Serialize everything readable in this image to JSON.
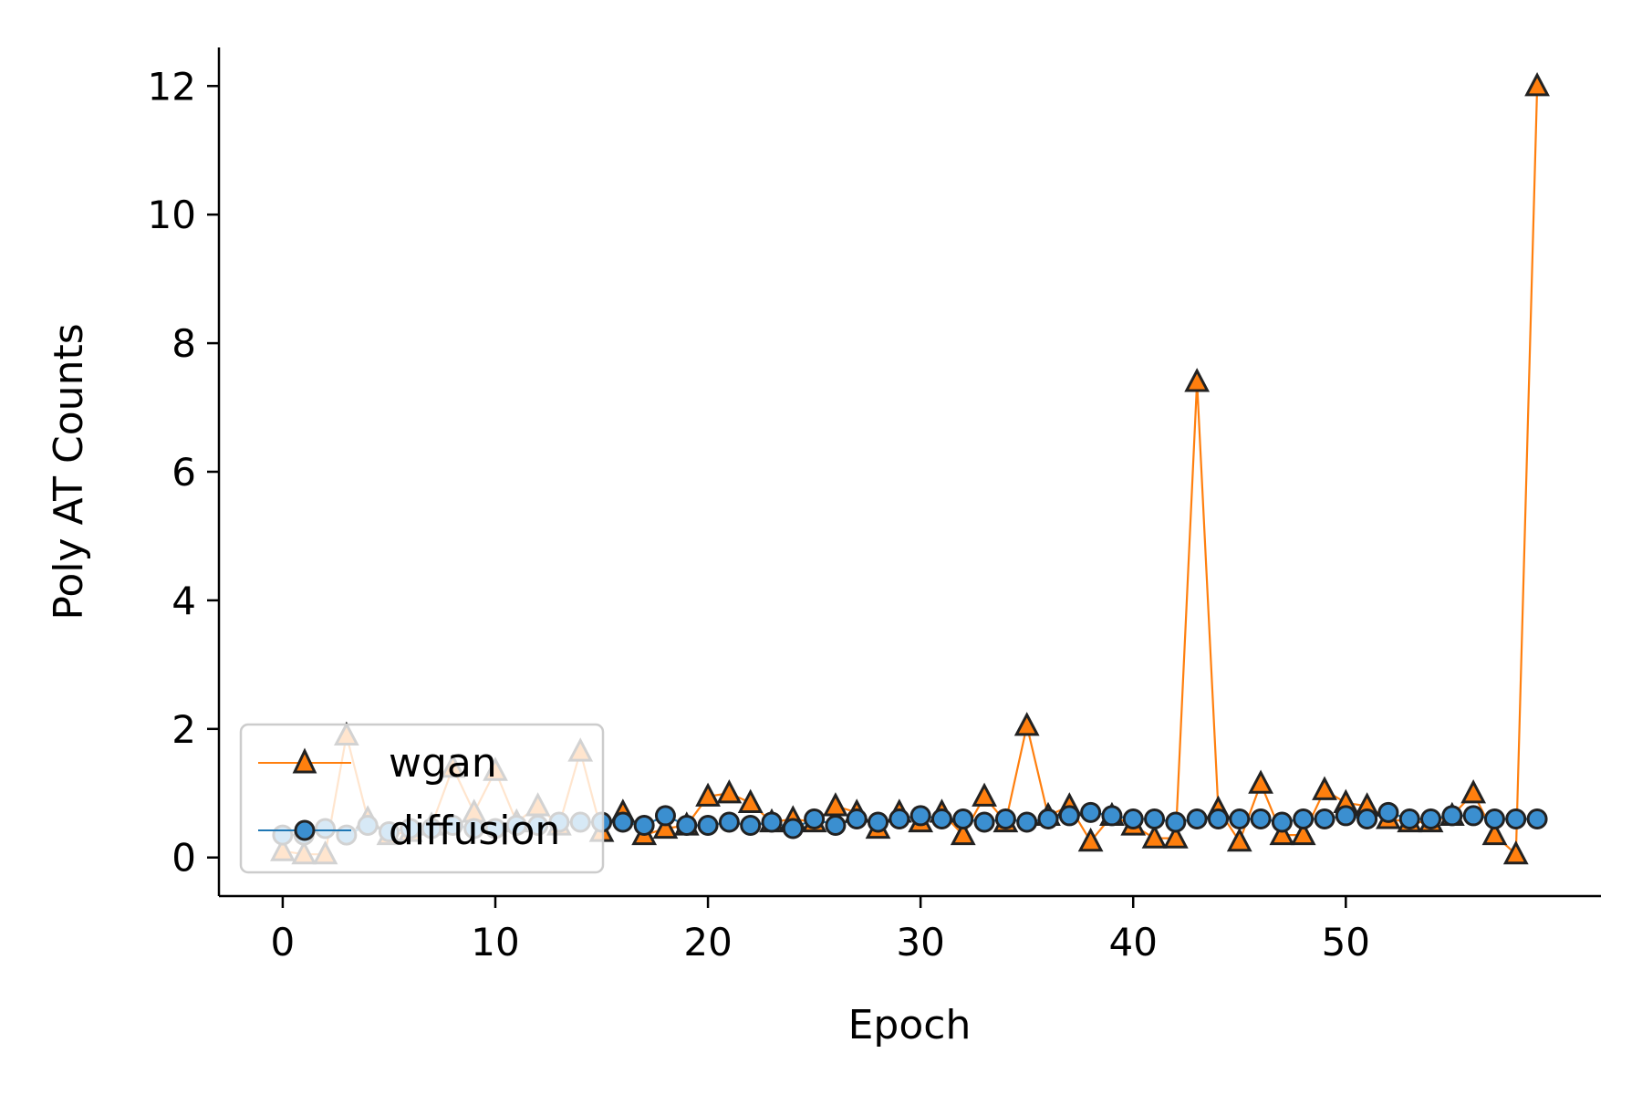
{
  "chart_data": {
    "type": "line",
    "xlabel": "Epoch",
    "ylabel": "Poly AT Counts",
    "xlim": [
      -3,
      62
    ],
    "ylim": [
      -0.6,
      12.6
    ],
    "xticks": [
      0,
      10,
      20,
      30,
      40,
      50
    ],
    "yticks": [
      0,
      2,
      4,
      6,
      8,
      10,
      12
    ],
    "grid": false,
    "legend_position": "lower-left",
    "x": [
      0,
      1,
      2,
      3,
      4,
      5,
      6,
      7,
      8,
      9,
      10,
      11,
      12,
      13,
      14,
      15,
      16,
      17,
      18,
      19,
      20,
      21,
      22,
      23,
      24,
      25,
      26,
      27,
      28,
      29,
      30,
      31,
      32,
      33,
      34,
      35,
      36,
      37,
      38,
      39,
      40,
      41,
      42,
      43,
      44,
      45,
      46,
      47,
      48,
      49,
      50,
      51,
      52,
      53,
      54,
      55,
      56,
      57,
      58,
      59
    ],
    "series": [
      {
        "name": "wgan",
        "color": "#ff7f0e",
        "marker": "triangle",
        "values": [
          0.1,
          0.05,
          0.05,
          1.9,
          0.6,
          0.35,
          0.4,
          0.5,
          1.4,
          0.7,
          1.35,
          0.55,
          0.8,
          0.5,
          1.65,
          0.4,
          0.7,
          0.35,
          0.45,
          0.5,
          0.95,
          1.0,
          0.85,
          0.55,
          0.6,
          0.55,
          0.8,
          0.7,
          0.45,
          0.7,
          0.55,
          0.7,
          0.35,
          0.95,
          0.55,
          2.05,
          0.65,
          0.8,
          0.25,
          0.65,
          0.5,
          0.3,
          0.3,
          7.4,
          0.75,
          0.25,
          1.15,
          0.35,
          0.35,
          1.05,
          0.85,
          0.8,
          0.6,
          0.55,
          0.55,
          0.65,
          1.0,
          0.35,
          0.05,
          12.0
        ]
      },
      {
        "name": "diffusion",
        "color": "#1f77b4",
        "marker": "circle",
        "values": [
          0.35,
          0.35,
          0.45,
          0.35,
          0.5,
          0.4,
          0.45,
          0.45,
          0.5,
          0.45,
          0.45,
          0.5,
          0.5,
          0.55,
          0.55,
          0.55,
          0.55,
          0.5,
          0.65,
          0.5,
          0.5,
          0.55,
          0.5,
          0.55,
          0.45,
          0.6,
          0.5,
          0.6,
          0.55,
          0.6,
          0.65,
          0.6,
          0.6,
          0.55,
          0.6,
          0.55,
          0.6,
          0.65,
          0.7,
          0.65,
          0.6,
          0.6,
          0.55,
          0.6,
          0.6,
          0.6,
          0.6,
          0.55,
          0.6,
          0.6,
          0.65,
          0.6,
          0.7,
          0.6,
          0.6,
          0.65,
          0.65,
          0.6,
          0.6,
          0.6
        ]
      }
    ]
  }
}
